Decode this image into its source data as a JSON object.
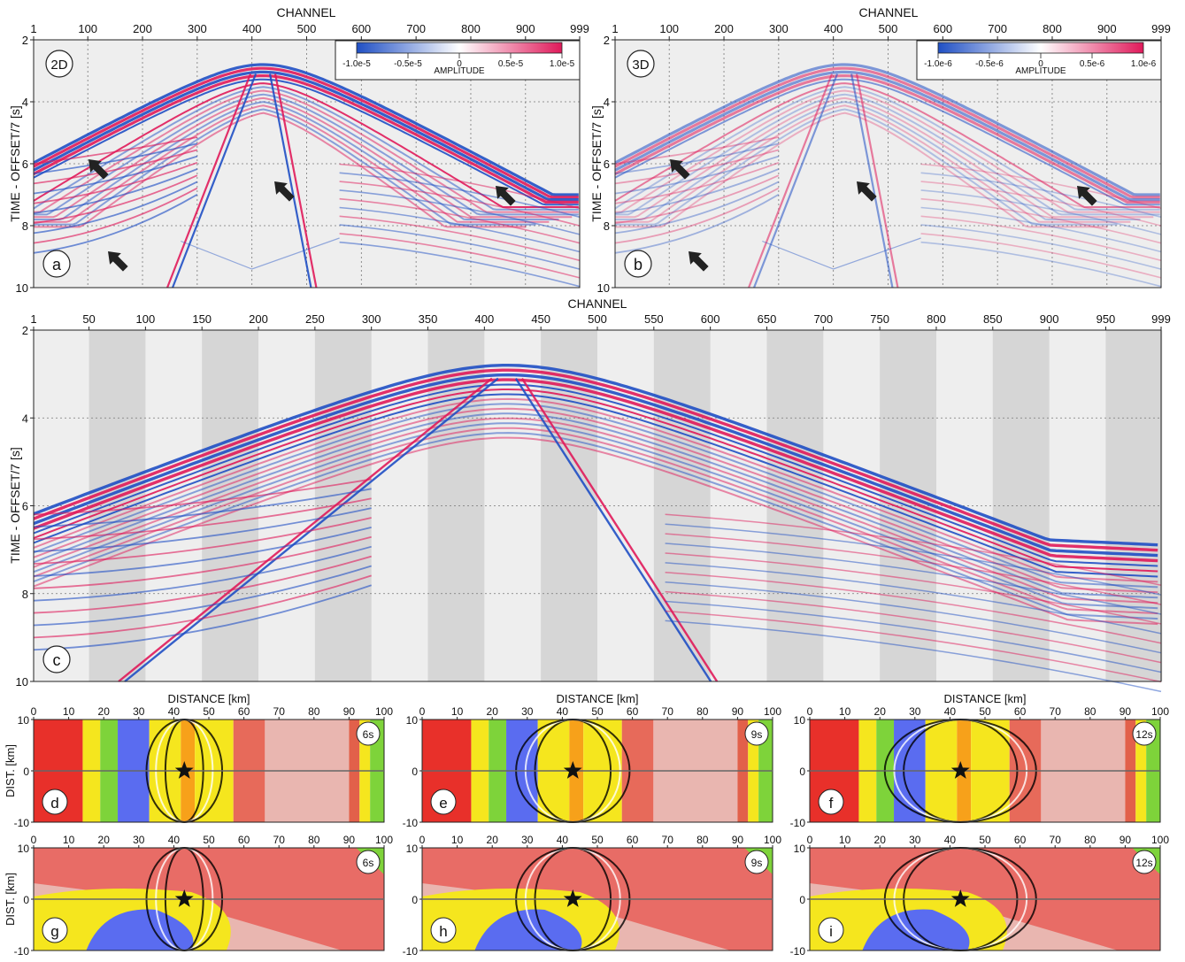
{
  "figure": {
    "channel_label": "CHANNEL",
    "time_label": "TIME - OFFSET/7 [s]",
    "distance_label": "DISTANCE [km]",
    "dist_label": "DIST. [km]"
  },
  "panel_a": {
    "letter": "a",
    "tag": "2D",
    "x_ticks": [
      "1",
      "100",
      "200",
      "300",
      "400",
      "500",
      "600",
      "700",
      "800",
      "900",
      "999"
    ],
    "y_ticks": [
      "2",
      "4",
      "6",
      "8",
      "10"
    ],
    "colorbar": {
      "labels": [
        "-1.0e-5",
        "-0.5e-5",
        "0",
        "0.5e-5",
        "1.0e-5"
      ],
      "title": "AMPLITUDE"
    }
  },
  "panel_b": {
    "letter": "b",
    "tag": "3D",
    "x_ticks": [
      "1",
      "100",
      "200",
      "300",
      "400",
      "500",
      "600",
      "700",
      "800",
      "900",
      "999"
    ],
    "y_ticks": [
      "2",
      "4",
      "6",
      "8",
      "10"
    ],
    "colorbar": {
      "labels": [
        "-1.0e-6",
        "-0.5e-6",
        "0",
        "0.5e-6",
        "1.0e-6"
      ],
      "title": "AMPLITUDE"
    }
  },
  "panel_c": {
    "letter": "c",
    "x_ticks": [
      "1",
      "50",
      "100",
      "150",
      "200",
      "250",
      "300",
      "350",
      "400",
      "450",
      "500",
      "550",
      "600",
      "650",
      "700",
      "750",
      "800",
      "850",
      "900",
      "950",
      "999"
    ],
    "y_ticks": [
      "2",
      "4",
      "6",
      "8",
      "10"
    ]
  },
  "map_panels": [
    {
      "letter": "d",
      "time": "6s",
      "row": "top"
    },
    {
      "letter": "e",
      "time": "9s",
      "row": "top"
    },
    {
      "letter": "f",
      "time": "12s",
      "row": "top"
    },
    {
      "letter": "g",
      "time": "6s",
      "row": "bottom"
    },
    {
      "letter": "h",
      "time": "9s",
      "row": "bottom"
    },
    {
      "letter": "i",
      "time": "12s",
      "row": "bottom"
    }
  ],
  "map_axes": {
    "x_ticks": [
      "0",
      "10",
      "20",
      "30",
      "40",
      "50",
      "60",
      "70",
      "80",
      "90",
      "100"
    ],
    "y_ticks": [
      "10",
      "0",
      "-10"
    ]
  },
  "colors": {
    "positive": "#e0195a",
    "negative": "#1f4fc4",
    "velocity_red": "#e8302a",
    "velocity_yellow": "#f5e61e",
    "velocity_green": "#7ed33a",
    "velocity_blue": "#5a6cf0"
  }
}
